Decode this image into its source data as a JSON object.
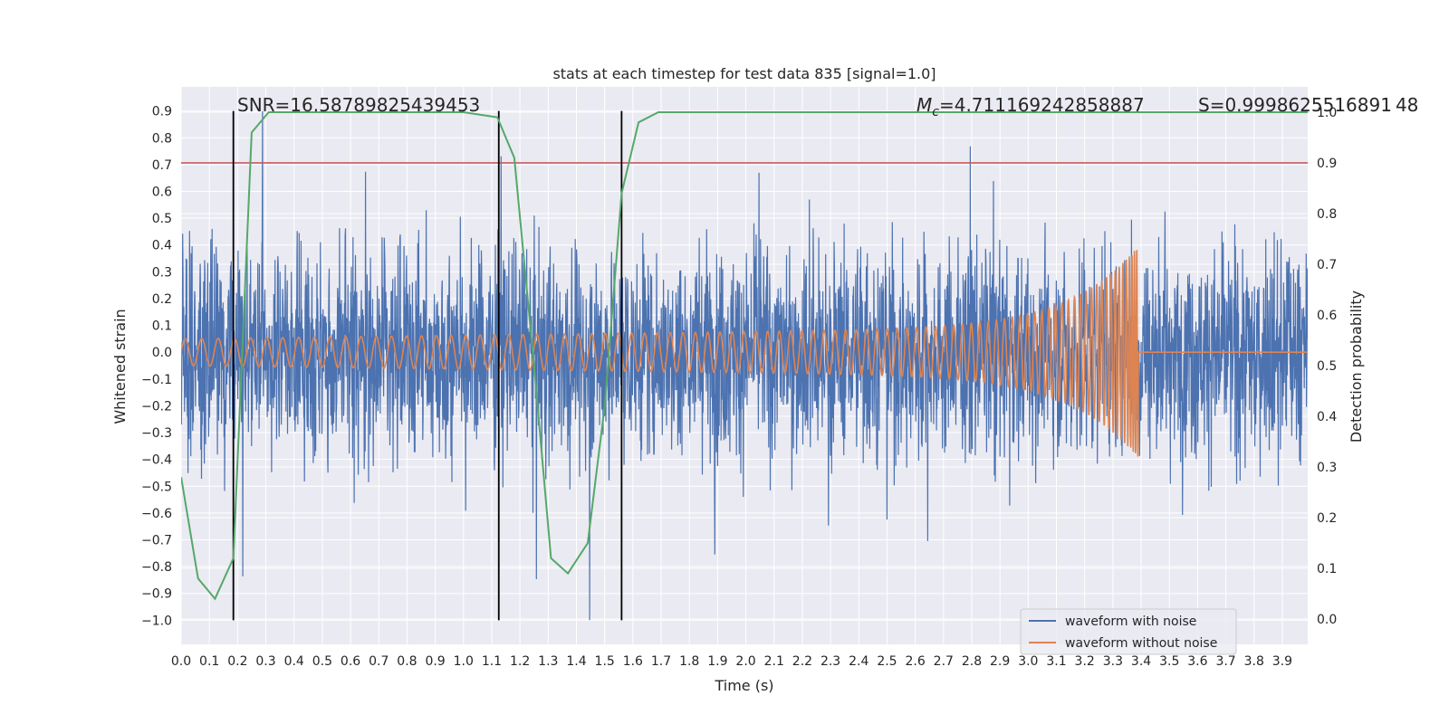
{
  "chart_data": {
    "type": "line",
    "title": "stats at each timestep for test data 835 [signal=1.0]",
    "xlabel": "Time (s)",
    "ylabel": "Whitened strain",
    "y2label": "Detection probability",
    "xlim": [
      0.0,
      3.99
    ],
    "ylim": [
      -1.09,
      0.99
    ],
    "y2lim": [
      -0.05,
      1.05
    ],
    "x_ticks": [
      "0.0",
      "0.1",
      "0.2",
      "0.3",
      "0.4",
      "0.5",
      "0.6",
      "0.7",
      "0.8",
      "0.9",
      "1.0",
      "1.1",
      "1.2",
      "1.3",
      "1.4",
      "1.5",
      "1.6",
      "1.7",
      "1.8",
      "1.9",
      "2.0",
      "2.1",
      "2.2",
      "2.3",
      "2.4",
      "2.5",
      "2.6",
      "2.7",
      "2.8",
      "2.9",
      "3.0",
      "3.1",
      "3.2",
      "3.3",
      "3.4",
      "3.5",
      "3.6",
      "3.7",
      "3.8",
      "3.9"
    ],
    "y_ticks": [
      "0.9",
      "0.8",
      "0.7",
      "0.6",
      "0.5",
      "0.4",
      "0.3",
      "0.2",
      "0.1",
      "0.0",
      "−0.1",
      "−0.2",
      "−0.3",
      "−0.4",
      "−0.5",
      "−0.6",
      "−0.7",
      "−0.8",
      "−0.9",
      "−1.0"
    ],
    "y2_ticks": [
      "1.0",
      "0.9",
      "0.8",
      "0.7",
      "0.6",
      "0.5",
      "0.4",
      "0.3",
      "0.2",
      "0.1",
      "0.0"
    ],
    "grid": true,
    "legend_position": "bottom-right",
    "annotations": {
      "snr": "SNR=16.58789825439453",
      "mc_symbol": "M",
      "mc_sub": "c",
      "mc_value": "=4.711169242858887",
      "s": "S=0.9998625516891 48"
    },
    "series": [
      {
        "name": "waveform with noise",
        "color": "#4c72b0",
        "axis": "left",
        "description_envelope": {
          "typical_amplitude": 0.3,
          "max": 0.9,
          "min": -1.0
        }
      },
      {
        "name": "waveform without noise",
        "color": "#dd8452",
        "axis": "left",
        "chirp": {
          "start_amplitude": 0.05,
          "peak_amplitude": 0.35,
          "merger_time": 3.39,
          "start_frequency_hz": 17,
          "end_frequency_hz": 60
        }
      },
      {
        "name": "detection probability",
        "color": "#55a868",
        "axis": "right",
        "x": [
          0.0,
          0.06,
          0.12,
          0.185,
          0.25,
          0.31,
          0.37,
          0.5,
          0.75,
          1.0,
          1.12,
          1.18,
          1.25,
          1.31,
          1.37,
          1.44,
          1.5,
          1.56,
          1.62,
          1.69,
          1.75,
          2.5,
          3.0,
          3.99
        ],
        "y": [
          0.28,
          0.08,
          0.04,
          0.12,
          0.96,
          1.0,
          1.0,
          1.0,
          1.0,
          1.0,
          0.99,
          0.91,
          0.5,
          0.12,
          0.09,
          0.15,
          0.42,
          0.84,
          0.98,
          1.0,
          1.0,
          1.0,
          1.0,
          1.0
        ]
      }
    ],
    "threshold": {
      "value": 0.9,
      "axis": "right",
      "color": "#c44e52"
    },
    "vertical_lines": {
      "x": [
        0.185,
        1.125,
        1.56
      ],
      "color": "#000000"
    },
    "legend": [
      "waveform with noise",
      "waveform without noise"
    ]
  }
}
